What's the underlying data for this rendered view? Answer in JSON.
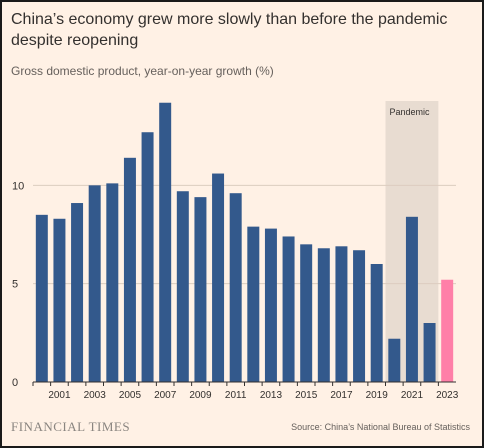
{
  "title": "China’s economy grew more slowly than before the pandemic despite reopening",
  "subtitle": "Gross domestic product, year-on-year growth (%)",
  "source": "Source: China’s National Bureau of Statistics",
  "brand": "FINANCIAL TIMES",
  "colors": {
    "background": "#fff1e5",
    "bar": "#33598c",
    "highlight": "#ff7fa8",
    "band": "#e8dcd1",
    "grid": "#dccdbf",
    "axis": "#33302e",
    "text": "#33302e"
  },
  "chart_data": {
    "type": "bar",
    "title": "China’s economy grew more slowly than before the pandemic despite reopening",
    "subtitle": "Gross domestic product, year-on-year growth (%)",
    "categories": [
      "2000",
      "2001",
      "2002",
      "2003",
      "2004",
      "2005",
      "2006",
      "2007",
      "2008",
      "2009",
      "2010",
      "2011",
      "2012",
      "2013",
      "2014",
      "2015",
      "2016",
      "2017",
      "2018",
      "2019",
      "2020",
      "2021",
      "2022",
      "2023"
    ],
    "values": [
      8.5,
      8.3,
      9.1,
      10.0,
      10.1,
      11.4,
      12.7,
      14.2,
      9.7,
      9.4,
      10.6,
      9.6,
      7.9,
      7.8,
      7.4,
      7.0,
      6.8,
      6.9,
      6.7,
      6.0,
      2.2,
      8.4,
      3.0,
      5.2
    ],
    "highlight_category": "2023",
    "xtick_labels": [
      "2001",
      "2003",
      "2005",
      "2007",
      "2009",
      "2011",
      "2013",
      "2015",
      "2017",
      "2019",
      "2021",
      "2023"
    ],
    "yticks": [
      0,
      5,
      10
    ],
    "ylim": [
      0,
      15
    ],
    "xlabel": "",
    "ylabel": "",
    "grid": true,
    "shaded_region": {
      "label": "Pandemic",
      "from": "2020",
      "to": "2022"
    }
  }
}
